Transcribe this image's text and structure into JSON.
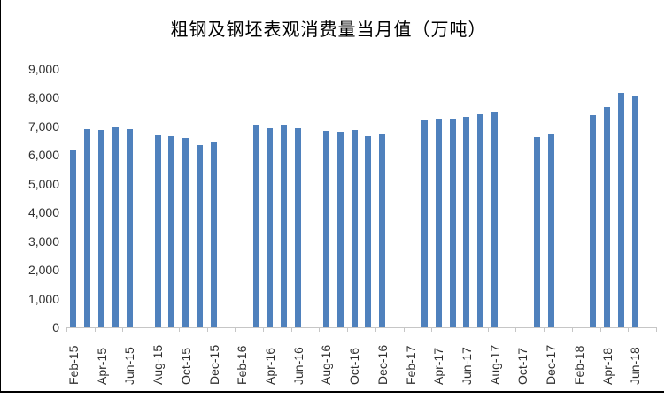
{
  "chart_data": {
    "type": "bar",
    "title": "粗钢及钢坯表观消费量当月值（万吨）",
    "categories": [
      "Feb-15",
      "Mar-15",
      "Apr-15",
      "May-15",
      "Jun-15",
      "Jul-15",
      "Aug-15",
      "Sep-15",
      "Oct-15",
      "Nov-15",
      "Dec-15",
      "Jan-16",
      "Feb-16",
      "Mar-16",
      "Apr-16",
      "May-16",
      "Jun-16",
      "Jul-16",
      "Aug-16",
      "Sep-16",
      "Oct-16",
      "Nov-16",
      "Dec-16",
      "Jan-17",
      "Feb-17",
      "Mar-17",
      "Apr-17",
      "May-17",
      "Jun-17",
      "Jul-17",
      "Aug-17",
      "Sep-17",
      "Oct-17",
      "Nov-17",
      "Dec-17",
      "Jan-18",
      "Feb-18",
      "Mar-18",
      "Apr-18",
      "May-18",
      "Jun-18"
    ],
    "values": [
      6160,
      6900,
      6880,
      7000,
      6910,
      null,
      6700,
      6650,
      6610,
      6340,
      6450,
      null,
      null,
      7060,
      6940,
      7060,
      6940,
      null,
      6830,
      6800,
      6860,
      6660,
      6730,
      null,
      null,
      7220,
      7280,
      7240,
      7350,
      7420,
      7480,
      null,
      null,
      6630,
      6730,
      null,
      null,
      7400,
      7690,
      8170,
      8050
    ],
    "xlabel": "",
    "ylabel": "",
    "ylim": [
      0,
      9000
    ],
    "ytick_step": 1000,
    "ytick_labels": [
      "0",
      "1,000",
      "2,000",
      "3,000",
      "4,000",
      "5,000",
      "6,000",
      "7,000",
      "8,000",
      "9,000"
    ],
    "x_labels_shown_every": 2,
    "grid": "off",
    "legend": "none",
    "bar_color": "#4F81BD",
    "axis_color": "#C6C6C6",
    "label_color": "#303030",
    "title_color": "#000000"
  }
}
